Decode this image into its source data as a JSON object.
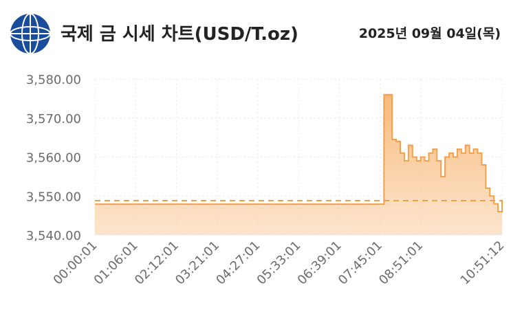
{
  "chart_data": {
    "type": "area",
    "title": "국제 금 시세 차트(USD/T.oz)",
    "date": "2025년 09월 04일(목)",
    "categories": [
      "00:00:01",
      null,
      null,
      null,
      null,
      null,
      null,
      null,
      null,
      null,
      "01:06:01",
      null,
      null,
      null,
      null,
      null,
      null,
      null,
      null,
      null,
      "02:12:01",
      null,
      null,
      null,
      null,
      null,
      null,
      null,
      null,
      null,
      "03:21:01",
      null,
      null,
      null,
      null,
      null,
      null,
      null,
      null,
      null,
      "04:27:01",
      null,
      null,
      null,
      null,
      null,
      null,
      null,
      null,
      null,
      "05:33:01",
      null,
      null,
      null,
      null,
      null,
      null,
      null,
      null,
      null,
      "06:39:01",
      null,
      null,
      null,
      null,
      null,
      null,
      null,
      null,
      null,
      "07:45:01",
      null,
      null,
      null,
      null,
      null,
      null,
      null,
      null,
      null,
      "08:51:01",
      null,
      null,
      null,
      null,
      null,
      null,
      null,
      null,
      null,
      null,
      null,
      null,
      null,
      null,
      null,
      null,
      null,
      null,
      null,
      "10:51:12"
    ],
    "values": [
      3547.9,
      3547.9,
      3547.9,
      3547.9,
      3547.9,
      3547.9,
      3547.9,
      3547.9,
      3547.9,
      3547.9,
      3547.9,
      3547.9,
      3547.9,
      3547.9,
      3547.9,
      3547.9,
      3547.9,
      3547.9,
      3547.9,
      3547.9,
      3547.9,
      3547.9,
      3547.9,
      3547.9,
      3547.9,
      3547.9,
      3547.9,
      3547.9,
      3547.9,
      3547.9,
      3547.9,
      3547.9,
      3547.9,
      3547.9,
      3547.9,
      3547.9,
      3547.9,
      3547.9,
      3547.9,
      3547.9,
      3547.9,
      3547.9,
      3547.9,
      3547.9,
      3547.9,
      3547.9,
      3547.9,
      3547.9,
      3547.9,
      3547.9,
      3547.9,
      3547.9,
      3547.9,
      3547.9,
      3547.9,
      3547.9,
      3547.9,
      3547.9,
      3547.9,
      3547.9,
      3547.9,
      3547.9,
      3547.9,
      3547.9,
      3547.9,
      3547.9,
      3547.9,
      3547.9,
      3547.9,
      3547.9,
      3547.9,
      3576,
      3576,
      3564.5,
      3564,
      3561,
      3559,
      3563,
      3560,
      3559,
      3560,
      3559,
      3561,
      3562,
      3559,
      3555,
      3560,
      3561,
      3560,
      3562,
      3561,
      3563,
      3561,
      3562,
      3561,
      3558,
      3552,
      3550,
      3548,
      3546,
      3549
    ],
    "reference_line": 3548.8,
    "color": "#f3a04c",
    "ylim": [
      3540,
      3580
    ],
    "yticks": [
      {
        "value": 3540,
        "label": "3,540.00"
      },
      {
        "value": 3550,
        "label": "3,550.00"
      },
      {
        "value": 3560,
        "label": "3,560.00"
      },
      {
        "value": 3570,
        "label": "3,570.00"
      },
      {
        "value": 3580,
        "label": "3,580.00"
      }
    ],
    "grid": true
  }
}
